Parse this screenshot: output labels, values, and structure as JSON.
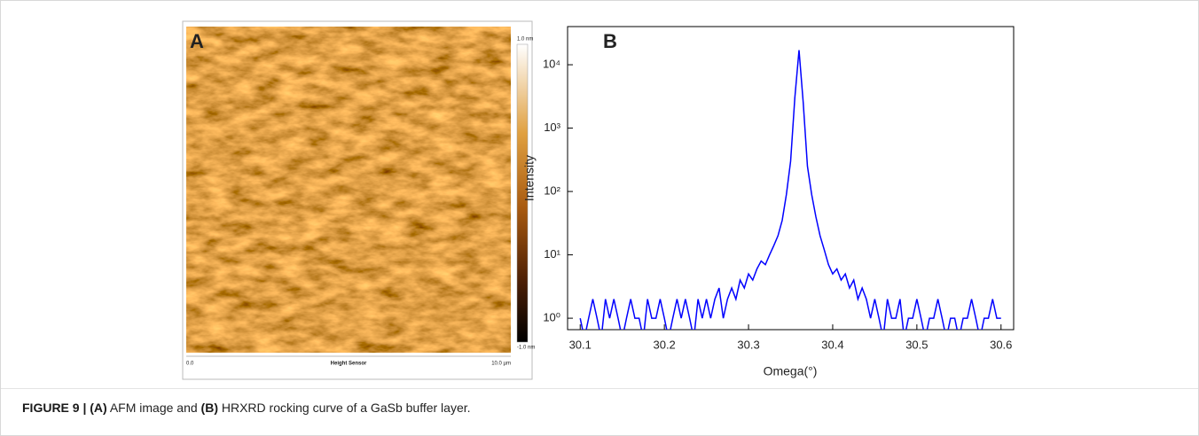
{
  "panel_a": {
    "label": "A",
    "colorbar_max": "1.0 nm",
    "colorbar_min": "-1.0 nm",
    "x_start": "0.0",
    "x_label": "Height Sensor",
    "x_end": "10.0 µm"
  },
  "chart_data": {
    "type": "line",
    "panel_label": "B",
    "x_label": "Omega(°)",
    "y_label": "Intensity",
    "log_y": true,
    "color": "#0000ff",
    "xlim": [
      30.085,
      30.615
    ],
    "ylim": [
      0.66,
      40000
    ],
    "xticks": [
      30.1,
      30.2,
      30.3,
      30.4,
      30.5,
      30.6
    ],
    "yticks": [
      {
        "value": 1,
        "label": "10⁰"
      },
      {
        "value": 10,
        "label": "10¹"
      },
      {
        "value": 100,
        "label": "10²"
      },
      {
        "value": 1000,
        "label": "10³"
      },
      {
        "value": 10000,
        "label": "10⁴"
      }
    ],
    "x": [
      30.1,
      30.105,
      30.11,
      30.115,
      30.12,
      30.125,
      30.13,
      30.135,
      30.14,
      30.145,
      30.15,
      30.155,
      30.16,
      30.165,
      30.17,
      30.175,
      30.18,
      30.185,
      30.19,
      30.195,
      30.2,
      30.205,
      30.21,
      30.215,
      30.22,
      30.225,
      30.23,
      30.235,
      30.24,
      30.245,
      30.25,
      30.255,
      30.26,
      30.265,
      30.27,
      30.275,
      30.28,
      30.285,
      30.29,
      30.295,
      30.3,
      30.305,
      30.31,
      30.315,
      30.32,
      30.325,
      30.33,
      30.335,
      30.34,
      30.345,
      30.35,
      30.355,
      30.36,
      30.365,
      30.37,
      30.375,
      30.38,
      30.385,
      30.39,
      30.395,
      30.4,
      30.405,
      30.41,
      30.415,
      30.42,
      30.425,
      30.43,
      30.435,
      30.44,
      30.445,
      30.45,
      30.455,
      30.46,
      30.465,
      30.47,
      30.475,
      30.48,
      30.485,
      30.49,
      30.495,
      30.5,
      30.505,
      30.51,
      30.515,
      30.52,
      30.525,
      30.53,
      30.535,
      30.54,
      30.545,
      30.55,
      30.555,
      30.56,
      30.565,
      30.57,
      30.575,
      30.58,
      30.585,
      30.59,
      30.595,
      30.6
    ],
    "values": [
      1,
      0,
      1,
      2,
      1,
      0,
      2,
      1,
      2,
      1,
      0,
      1,
      2,
      1,
      1,
      0,
      2,
      1,
      1,
      2,
      1,
      0,
      1,
      2,
      1,
      2,
      1,
      0,
      2,
      1,
      2,
      1,
      2,
      3,
      1,
      2,
      3,
      2,
      4,
      3,
      5,
      4,
      6,
      8,
      7,
      10,
      14,
      20,
      35,
      90,
      300,
      3000,
      17000,
      2500,
      250,
      90,
      40,
      20,
      12,
      7,
      5,
      6,
      4,
      5,
      3,
      4,
      2,
      3,
      2,
      1,
      2,
      1,
      0,
      2,
      1,
      1,
      2,
      0,
      1,
      1,
      2,
      1,
      0,
      1,
      1,
      2,
      1,
      0,
      1,
      1,
      0,
      1,
      1,
      2,
      1,
      0,
      1,
      1,
      2,
      1,
      1
    ]
  },
  "caption": {
    "figure": "FIGURE 9 |",
    "part_a": "(A)",
    "text_a": "AFM image and",
    "part_b": "(B)",
    "text_b": "HRXRD rocking curve of a GaSb buffer layer."
  }
}
